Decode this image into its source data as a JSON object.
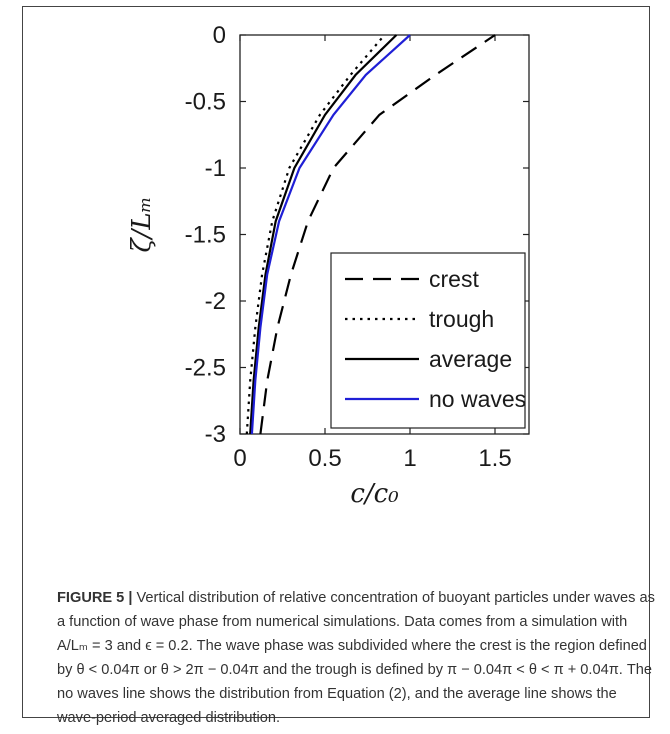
{
  "chart_data": {
    "type": "line",
    "xlabel": "c/c₀",
    "ylabel": "ζ/Lₘ",
    "xlim": [
      0,
      1.7
    ],
    "ylim": [
      -3,
      0
    ],
    "x_ticks": [
      "0",
      "0.5",
      "1",
      "1.5"
    ],
    "x_tick_values": [
      0,
      0.5,
      1,
      1.5
    ],
    "y_ticks": [
      "0",
      "-0.5",
      "-1",
      "-1.5",
      "-2",
      "-2.5",
      "-3"
    ],
    "y_tick_values": [
      0,
      -0.5,
      -1,
      -1.5,
      -2,
      -2.5,
      -3
    ],
    "legend_position": "bottom-right",
    "series": [
      {
        "name": "crest",
        "style": "dashed",
        "color": "#000000",
        "points": [
          [
            0.12,
            -3
          ],
          [
            0.16,
            -2.6
          ],
          [
            0.22,
            -2.2
          ],
          [
            0.3,
            -1.8
          ],
          [
            0.4,
            -1.4
          ],
          [
            0.55,
            -1.0
          ],
          [
            0.82,
            -0.6
          ],
          [
            1.15,
            -0.3
          ],
          [
            1.5,
            0
          ]
        ]
      },
      {
        "name": "trough",
        "style": "dotted",
        "color": "#000000",
        "points": [
          [
            0.04,
            -3
          ],
          [
            0.06,
            -2.6
          ],
          [
            0.09,
            -2.2
          ],
          [
            0.13,
            -1.8
          ],
          [
            0.19,
            -1.4
          ],
          [
            0.29,
            -1.0
          ],
          [
            0.47,
            -0.6
          ],
          [
            0.65,
            -0.3
          ],
          [
            0.85,
            0
          ]
        ]
      },
      {
        "name": "average",
        "style": "solid",
        "color": "#000000",
        "points": [
          [
            0.06,
            -3
          ],
          [
            0.08,
            -2.6
          ],
          [
            0.11,
            -2.2
          ],
          [
            0.15,
            -1.8
          ],
          [
            0.21,
            -1.4
          ],
          [
            0.32,
            -1.0
          ],
          [
            0.5,
            -0.6
          ],
          [
            0.68,
            -0.3
          ],
          [
            0.92,
            0
          ]
        ]
      },
      {
        "name": "no waves",
        "style": "solid",
        "color": "#1f1fd6",
        "points": [
          [
            0.07,
            -3
          ],
          [
            0.09,
            -2.6
          ],
          [
            0.12,
            -2.2
          ],
          [
            0.16,
            -1.8
          ],
          [
            0.23,
            -1.4
          ],
          [
            0.35,
            -1.0
          ],
          [
            0.55,
            -0.6
          ],
          [
            0.74,
            -0.3
          ],
          [
            1.0,
            0
          ]
        ]
      }
    ]
  },
  "caption": {
    "figure_label": "FIGURE 5 |",
    "text": " Vertical distribution of relative concentration of buoyant particles under waves as a function of wave phase from numerical simulations. Data comes from a simulation with A/Lₘ = 3 and ϵ = 0.2. The wave phase was subdivided where the crest is the region defined by θ < 0.04π or θ > 2π − 0.04π and the trough is defined by π − 0.04π < θ < π + 0.04π. The no waves line shows the distribution from Equation (2), and the average line shows the wave-period averaged distribution."
  }
}
